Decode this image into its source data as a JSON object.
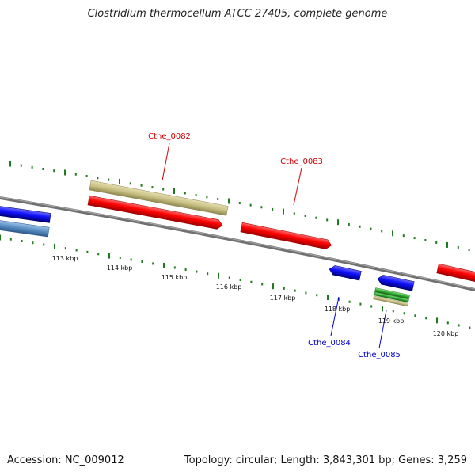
{
  "title": "Clostridium thermocellum ATCC 27405, complete genome",
  "footer": {
    "accession": "Accession: NC_009012",
    "summary": "Topology: circular; Length: 3,843,301 bp; Genes: 3,259"
  },
  "ticks": [
    "113 kbp",
    "114 kbp",
    "115 kbp",
    "116 kbp",
    "117 kbp",
    "118 kbp",
    "119 kbp",
    "120 kbp"
  ],
  "gene_labels": {
    "g0082": "Cthe_0082",
    "g0083": "Cthe_0083",
    "g0084": "Cthe_0084",
    "g0085": "Cthe_0085"
  },
  "colors": {
    "backbone": "#808080",
    "forward_gene": "#ff0000",
    "reverse_gene": "#1010ff",
    "khaki_feature": "#c8c084",
    "steel_feature": "#5a8ec2",
    "green_feature": "#2fae2f",
    "tick": "#1f7a1f",
    "label_forward": "#cc0000",
    "label_reverse": "#0000cc"
  }
}
